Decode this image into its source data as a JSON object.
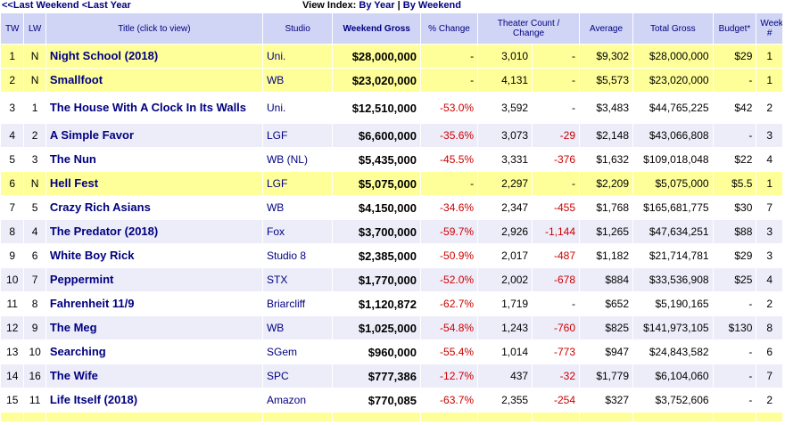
{
  "nav": {
    "last_weekend": "<<Last Weekend",
    "last_year": "<Last Year",
    "view_index_label": "View Index:",
    "by_year": "By Year",
    "separator": "|",
    "by_weekend": "By Weekend"
  },
  "table": {
    "headers": {
      "tw": "TW",
      "lw": "LW",
      "title": "Title (click to view)",
      "studio": "Studio",
      "weekend_gross": "Weekend Gross",
      "pct_change": "% Change",
      "theater_count": "Theater Count / Change",
      "average": "Average",
      "total_gross": "Total Gross",
      "budget": "Budget*",
      "week": "Week #"
    },
    "rows": [
      {
        "tw": "1",
        "lw": "N",
        "title": "Night School (2018)",
        "studio": "Uni.",
        "gross": "$28,000,000",
        "pct": "-",
        "theaters": "3,010",
        "tchange": "-",
        "avg": "$9,302",
        "total": "$28,000,000",
        "budget": "$29",
        "week": "1"
      },
      {
        "tw": "2",
        "lw": "N",
        "title": "Smallfoot",
        "studio": "WB",
        "gross": "$23,020,000",
        "pct": "-",
        "theaters": "4,131",
        "tchange": "-",
        "avg": "$5,573",
        "total": "$23,020,000",
        "budget": "-",
        "week": "1"
      },
      {
        "tw": "3",
        "lw": "1",
        "title": "The House With A Clock In Its Walls",
        "studio": "Uni.",
        "gross": "$12,510,000",
        "pct": "-53.0%",
        "theaters": "3,592",
        "tchange": "-",
        "avg": "$3,483",
        "total": "$44,765,225",
        "budget": "$42",
        "week": "2"
      },
      {
        "tw": "4",
        "lw": "2",
        "title": "A Simple Favor",
        "studio": "LGF",
        "gross": "$6,600,000",
        "pct": "-35.6%",
        "theaters": "3,073",
        "tchange": "-29",
        "avg": "$2,148",
        "total": "$43,066,808",
        "budget": "-",
        "week": "3"
      },
      {
        "tw": "5",
        "lw": "3",
        "title": "The Nun",
        "studio": "WB (NL)",
        "gross": "$5,435,000",
        "pct": "-45.5%",
        "theaters": "3,331",
        "tchange": "-376",
        "avg": "$1,632",
        "total": "$109,018,048",
        "budget": "$22",
        "week": "4"
      },
      {
        "tw": "6",
        "lw": "N",
        "title": "Hell Fest",
        "studio": "LGF",
        "gross": "$5,075,000",
        "pct": "-",
        "theaters": "2,297",
        "tchange": "-",
        "avg": "$2,209",
        "total": "$5,075,000",
        "budget": "$5.5",
        "week": "1"
      },
      {
        "tw": "7",
        "lw": "5",
        "title": "Crazy Rich Asians",
        "studio": "WB",
        "gross": "$4,150,000",
        "pct": "-34.6%",
        "theaters": "2,347",
        "tchange": "-455",
        "avg": "$1,768",
        "total": "$165,681,775",
        "budget": "$30",
        "week": "7"
      },
      {
        "tw": "8",
        "lw": "4",
        "title": "The Predator (2018)",
        "studio": "Fox",
        "gross": "$3,700,000",
        "pct": "-59.7%",
        "theaters": "2,926",
        "tchange": "-1,144",
        "avg": "$1,265",
        "total": "$47,634,251",
        "budget": "$88",
        "week": "3"
      },
      {
        "tw": "9",
        "lw": "6",
        "title": "White Boy Rick",
        "studio": "Studio 8",
        "gross": "$2,385,000",
        "pct": "-50.9%",
        "theaters": "2,017",
        "tchange": "-487",
        "avg": "$1,182",
        "total": "$21,714,781",
        "budget": "$29",
        "week": "3"
      },
      {
        "tw": "10",
        "lw": "7",
        "title": "Peppermint",
        "studio": "STX",
        "gross": "$1,770,000",
        "pct": "-52.0%",
        "theaters": "2,002",
        "tchange": "-678",
        "avg": "$884",
        "total": "$33,536,908",
        "budget": "$25",
        "week": "4"
      },
      {
        "tw": "11",
        "lw": "8",
        "title": "Fahrenheit 11/9",
        "studio": "Briarcliff",
        "gross": "$1,120,872",
        "pct": "-62.7%",
        "theaters": "1,719",
        "tchange": "-",
        "avg": "$652",
        "total": "$5,190,165",
        "budget": "-",
        "week": "2"
      },
      {
        "tw": "12",
        "lw": "9",
        "title": "The Meg",
        "studio": "WB",
        "gross": "$1,025,000",
        "pct": "-54.8%",
        "theaters": "1,243",
        "tchange": "-760",
        "avg": "$825",
        "total": "$141,973,105",
        "budget": "$130",
        "week": "8"
      },
      {
        "tw": "13",
        "lw": "10",
        "title": "Searching",
        "studio": "SGem",
        "gross": "$960,000",
        "pct": "-55.4%",
        "theaters": "1,014",
        "tchange": "-773",
        "avg": "$947",
        "total": "$24,843,582",
        "budget": "-",
        "week": "6"
      },
      {
        "tw": "14",
        "lw": "16",
        "title": "The Wife",
        "studio": "SPC",
        "gross": "$777,386",
        "pct": "-12.7%",
        "theaters": "437",
        "tchange": "-32",
        "avg": "$1,779",
        "total": "$6,104,060",
        "budget": "-",
        "week": "7"
      },
      {
        "tw": "15",
        "lw": "11",
        "title": "Life Itself (2018)",
        "studio": "Amazon",
        "gross": "$770,085",
        "pct": "-63.7%",
        "theaters": "2,355",
        "tchange": "-254",
        "avg": "$327",
        "total": "$3,752,606",
        "budget": "-",
        "week": "2"
      }
    ]
  }
}
